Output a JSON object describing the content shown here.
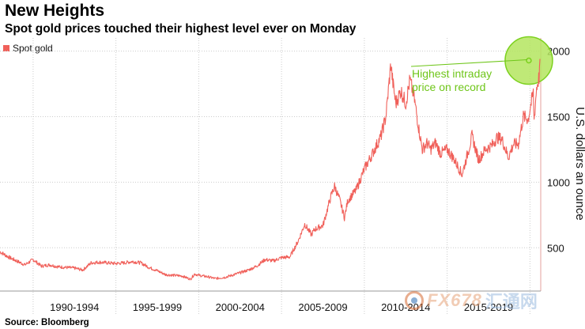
{
  "header": {
    "title": "New Heights",
    "subtitle": "Spot gold prices touched their highest level ever on Monday"
  },
  "source": "Source: Bloomberg",
  "watermark": {
    "latin": "FX678",
    "cn": "汇通网"
  },
  "colors": {
    "line": "#f0605a",
    "highlight": "#7cd11e",
    "highlight_fill": "#b4e55f",
    "annotation": "#6fc61a",
    "grid": "#cccccc"
  },
  "chart_data": {
    "type": "line",
    "title": "New Heights",
    "subtitle": "Spot gold prices touched their highest level ever on Monday",
    "ylabel": "U.S. dollars an ounce",
    "xlabel": "",
    "ylim": [
      170,
      2100
    ],
    "xlim": [
      1988.0,
      2020.65
    ],
    "yticks": [
      500,
      1000,
      1500,
      2000
    ],
    "x_categories": [
      "1990-1994",
      "1995-1999",
      "2000-2004",
      "2005-2009",
      "2010-2014",
      "2015-2019"
    ],
    "legend": {
      "position": "top-left",
      "entries": [
        "Spot gold"
      ]
    },
    "annotation": {
      "text_line1": "Highest intraday",
      "text_line2": "price on record",
      "x": 2020.6,
      "y": 1940
    },
    "series": [
      {
        "name": "Spot gold",
        "x": [
          1988.0,
          1988.5,
          1989.0,
          1989.5,
          1990.0,
          1990.5,
          1991.0,
          1991.5,
          1992.0,
          1992.5,
          1993.0,
          1993.5,
          1994.0,
          1994.5,
          1995.0,
          1995.5,
          1996.0,
          1996.5,
          1997.0,
          1997.5,
          1998.0,
          1998.5,
          1999.0,
          1999.5,
          1999.75,
          2000.0,
          2000.5,
          2001.0,
          2001.3,
          2001.6,
          2002.0,
          2002.5,
          2003.0,
          2003.5,
          2004.0,
          2004.5,
          2005.0,
          2005.5,
          2006.0,
          2006.4,
          2006.8,
          2007.0,
          2007.5,
          2008.0,
          2008.2,
          2008.5,
          2008.8,
          2009.0,
          2009.5,
          2010.0,
          2010.5,
          2011.0,
          2011.3,
          2011.6,
          2011.7,
          2011.9,
          2012.2,
          2012.5,
          2012.75,
          2013.0,
          2013.3,
          2013.5,
          2013.8,
          2014.0,
          2014.3,
          2014.6,
          2015.0,
          2015.4,
          2015.9,
          2016.2,
          2016.5,
          2016.9,
          2017.3,
          2017.7,
          2018.0,
          2018.3,
          2018.7,
          2019.0,
          2019.3,
          2019.6,
          2019.9,
          2020.0,
          2020.2,
          2020.25,
          2020.4,
          2020.55,
          2020.6
        ],
        "values": [
          470,
          430,
          400,
          370,
          410,
          360,
          370,
          355,
          350,
          345,
          330,
          385,
          390,
          385,
          380,
          385,
          395,
          385,
          350,
          325,
          295,
          290,
          285,
          260,
          300,
          290,
          280,
          265,
          270,
          275,
          290,
          310,
          330,
          360,
          410,
          400,
          425,
          430,
          550,
          680,
          600,
          640,
          670,
          900,
          970,
          870,
          730,
          860,
          940,
          1100,
          1220,
          1350,
          1500,
          1900,
          1780,
          1600,
          1700,
          1600,
          1780,
          1650,
          1400,
          1250,
          1300,
          1250,
          1300,
          1220,
          1250,
          1180,
          1060,
          1200,
          1350,
          1170,
          1250,
          1280,
          1340,
          1330,
          1190,
          1290,
          1290,
          1500,
          1480,
          1560,
          1680,
          1470,
          1720,
          1800,
          1940
        ]
      }
    ]
  }
}
